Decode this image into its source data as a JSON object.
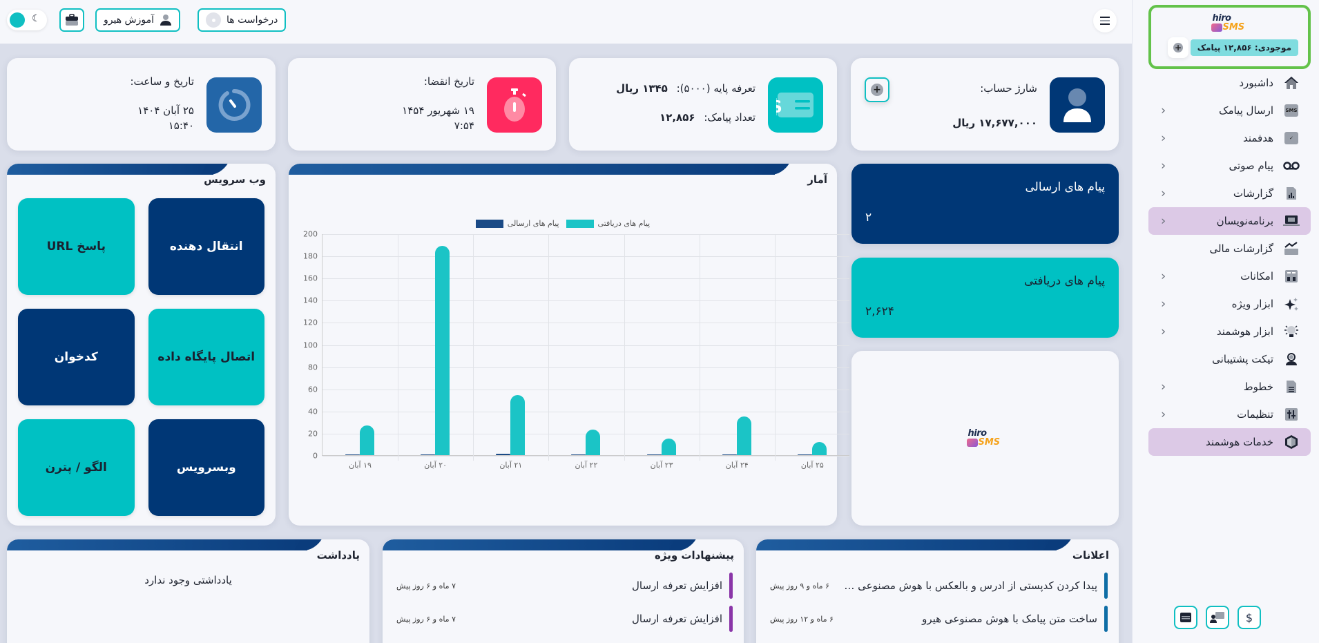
{
  "topbar": {
    "requests_label": "درخواست ها",
    "training_label": "آموزش هیرو"
  },
  "sidebar": {
    "brand": {
      "logo_top": "hiro",
      "logo_bottom": "SMS"
    },
    "credit": "موجودی: ۱۲,۸۵۶ پیامک",
    "items": [
      {
        "label": "داشبورد",
        "icon": "home-icon",
        "has_children": false,
        "active": false
      },
      {
        "label": "ارسال پیامک",
        "icon": "sms-icon",
        "has_children": true,
        "active": false
      },
      {
        "label": "هدفمند",
        "icon": "check-message-icon",
        "has_children": true,
        "active": false
      },
      {
        "label": "پیام صوتی",
        "icon": "voicemail-icon",
        "has_children": true,
        "active": false
      },
      {
        "label": "گزارشات",
        "icon": "report-icon",
        "has_children": true,
        "active": false
      },
      {
        "label": "برنامه‌نویسان",
        "icon": "code-laptop-icon",
        "has_children": true,
        "active": true
      },
      {
        "label": "گزارشات مالی",
        "icon": "finance-chart-icon",
        "has_children": false,
        "active": false
      },
      {
        "label": "امکانات",
        "icon": "features-icon",
        "has_children": true,
        "active": false
      },
      {
        "label": "ابزار ویژه",
        "icon": "sparkle-icon",
        "has_children": true,
        "active": false
      },
      {
        "label": "ابزار هوشمند",
        "icon": "lightbulb-icon",
        "has_children": true,
        "active": false
      },
      {
        "label": "تیکت پشتیبانی",
        "icon": "support-agent-icon",
        "has_children": false,
        "active": false
      },
      {
        "label": "خطوط",
        "icon": "sim-card-icon",
        "has_children": true,
        "active": false
      },
      {
        "label": "تنظیمات",
        "icon": "settings-sliders-icon",
        "has_children": true,
        "active": false
      },
      {
        "label": "خدمات هوشمند",
        "icon": "cube-icon",
        "has_children": false,
        "active": true
      }
    ],
    "footer_icons": [
      "window-icon",
      "user-presentation-icon",
      "dollar-icon"
    ]
  },
  "info_cards": {
    "balance": {
      "label": "شارژ حساب:",
      "value": "۱۷,۶۷۷,۰۰۰ ریال"
    },
    "tariff": {
      "label": "تعرفه پایه (۵۰۰۰):",
      "value": "۱۳۴۵ ریال",
      "count_label": "تعداد پیامک:",
      "count_value": "۱۲,۸۵۶"
    },
    "expiry": {
      "label": "تاریخ انقضا:",
      "date": "۱۹ شهریور ۱۴۵۴",
      "time": "۷:۵۴"
    },
    "now": {
      "label": "تاریخ و ساعت:",
      "date": "۲۵ آبان ۱۴۰۴",
      "time": "۱۵:۴۰"
    }
  },
  "stats": {
    "sent": {
      "label": "پیام های ارسالی",
      "value": "۲"
    },
    "received": {
      "label": "پیام های دریافتی",
      "value": "۲,۶۲۴"
    }
  },
  "chart_panel": {
    "title": "آمار"
  },
  "chart_data": {
    "type": "bar",
    "title": "آمار",
    "categories": [
      "۱۹ آبان",
      "۲۰ آبان",
      "۲۱ آبان",
      "۲۲ آبان",
      "۲۳ آبان",
      "۲۴ آبان",
      "۲۵ آبان"
    ],
    "series": [
      {
        "name": "پیام های ارسالی",
        "color": "#1a4a86",
        "values": [
          0,
          0,
          1,
          0,
          0,
          0,
          0
        ]
      },
      {
        "name": "پیام های دریافتی",
        "color": "#1bc4c6",
        "values": [
          27,
          189,
          54,
          23,
          15,
          35,
          12
        ]
      }
    ],
    "yticks": [
      0,
      20,
      40,
      60,
      80,
      100,
      120,
      140,
      160,
      180,
      200
    ],
    "ylim": [
      0,
      200
    ],
    "grid": true,
    "legend_position": "top"
  },
  "webservice": {
    "title": "وب سرویس",
    "tiles": [
      {
        "label": "انتقال دهنده",
        "style": "navy"
      },
      {
        "label": "پاسخ URL",
        "style": "teal"
      },
      {
        "label": "اتصال پایگاه داده",
        "style": "teal"
      },
      {
        "label": "کدخوان",
        "style": "navy"
      },
      {
        "label": "وبسرویس",
        "style": "navy"
      },
      {
        "label": "الگو / پترن",
        "style": "teal"
      }
    ]
  },
  "announcements": {
    "title": "اعلانات",
    "items": [
      {
        "text": "پیدا کردن کدپستی از ادرس و بالعکس با هوش مصنوعی هیرو",
        "time": "۶ ماه و ۹ روز پیش",
        "color": "#0f6ea6"
      },
      {
        "text": "ساخت متن پیامک با هوش مصنوعی هیرو",
        "time": "۶ ماه و ۱۲ روز پیش",
        "color": "#0f6ea6"
      }
    ]
  },
  "offers": {
    "title": "پیشنهادات ویژه",
    "items": [
      {
        "text": "افزایش تعرفه ارسال",
        "time": "۷ ماه و ۶ روز پیش",
        "color": "#8a35a8"
      },
      {
        "text": "افزایش تعرفه ارسال",
        "time": "۷ ماه و ۶ روز پیش",
        "color": "#8a35a8"
      }
    ]
  },
  "notes": {
    "title": "یادداشت",
    "empty_text": "یادداشتی وجود ندارد"
  },
  "colors": {
    "navy": "#003776",
    "teal": "#00c1c3",
    "pink": "#ff2a5f",
    "blue": "#2366a8",
    "active_menu": "#dcc9e6",
    "brand_border": "#63c24a"
  }
}
